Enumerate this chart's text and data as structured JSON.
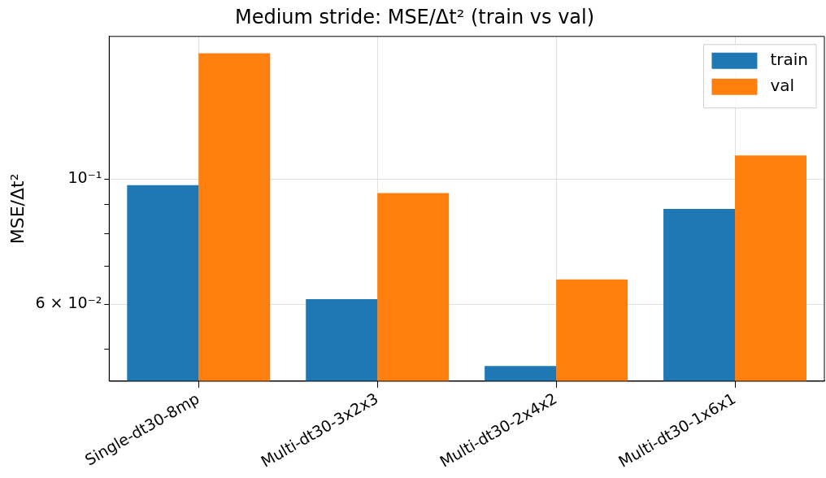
{
  "chart_data": {
    "type": "bar",
    "title": "Medium stride: MSE/Δt² (train vs val)",
    "ylabel": "MSE/Δt²",
    "categories": [
      "Single-dt30-8mp",
      "Multi-dt30-3x2x3",
      "Multi-dt30-2x4x2",
      "Multi-dt30-1x6x1"
    ],
    "series": [
      {
        "name": "train",
        "color": "#1f77b4",
        "values": [
          0.0975,
          0.0613,
          0.0467,
          0.0885
        ]
      },
      {
        "name": "val",
        "color": "#ff7f0e",
        "values": [
          0.1667,
          0.0944,
          0.0664,
          0.11
        ]
      }
    ],
    "log": "y",
    "ylim": [
      0.0439,
      0.1785
    ],
    "yticks": [
      {
        "value": 0.05,
        "label": null
      },
      {
        "value": 0.06,
        "label": "6 × 10⁻²"
      },
      {
        "value": 0.07,
        "label": null
      },
      {
        "value": 0.08,
        "label": null
      },
      {
        "value": 0.09,
        "label": null
      },
      {
        "value": 0.1,
        "label": "10⁻¹"
      }
    ],
    "grid": true,
    "legend": "top right"
  }
}
